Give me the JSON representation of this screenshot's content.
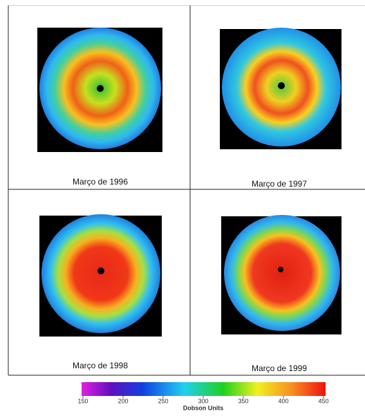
{
  "panels": [
    {
      "caption": "Março de 1996"
    },
    {
      "caption": "Março de 1997"
    },
    {
      "caption": "Março de 1998"
    },
    {
      "caption": "Março de 1999"
    }
  ],
  "colorbar": {
    "label": "Dobson Units",
    "range": [
      150,
      450
    ],
    "ticks": [
      150,
      200,
      250,
      300,
      350,
      400,
      450
    ]
  }
}
